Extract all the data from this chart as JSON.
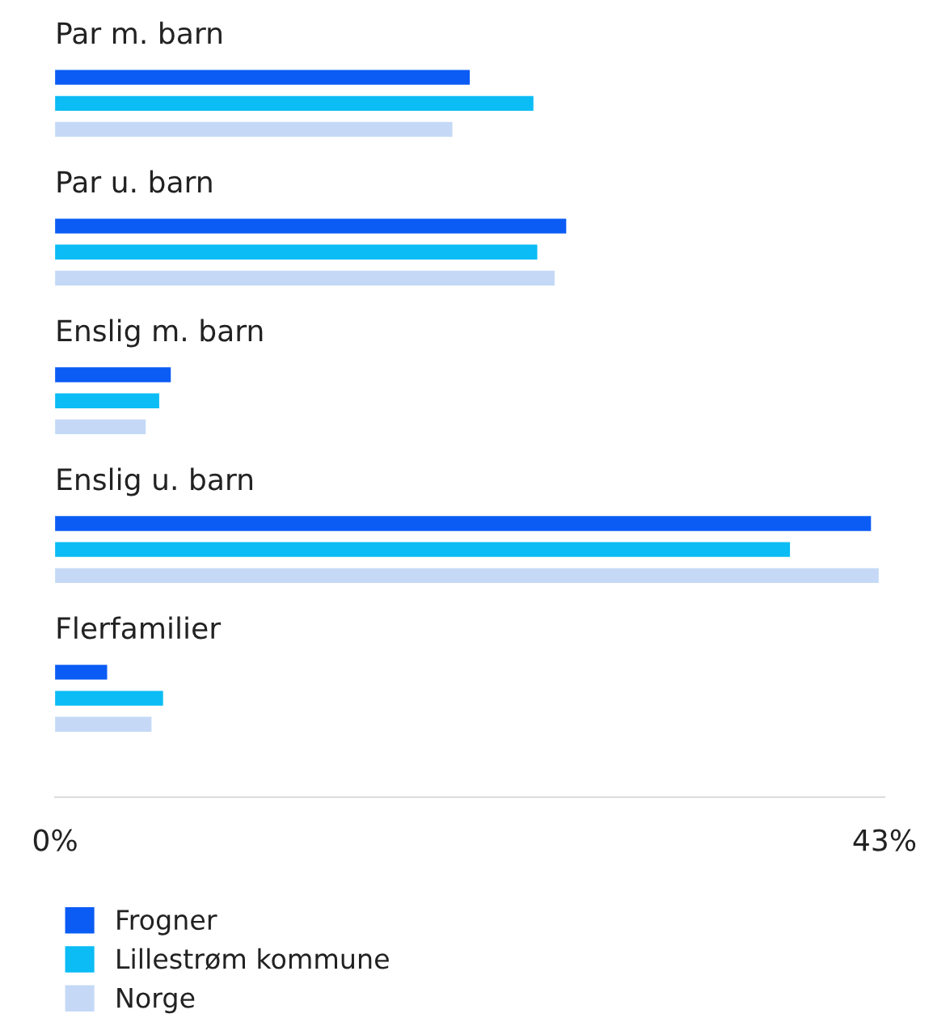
{
  "chart_data": {
    "type": "bar",
    "orientation": "horizontal",
    "categories": [
      "Par m. barn",
      "Par u. barn",
      "Enslig m. barn",
      "Enslig u. barn",
      "Flerfamilier"
    ],
    "series": [
      {
        "name": "Frogner",
        "color": "#0b5cf5",
        "values": [
          21.5,
          26.5,
          6.0,
          42.3,
          2.7
        ]
      },
      {
        "name": "Lillestrøm kommune",
        "color": "#0bbcf5",
        "values": [
          24.8,
          25.0,
          5.4,
          38.1,
          5.6
        ]
      },
      {
        "name": "Norge",
        "color": "#c5d9f7",
        "values": [
          20.6,
          25.9,
          4.7,
          42.7,
          5.0
        ]
      }
    ],
    "xlim": [
      0,
      43
    ],
    "xticks": [
      {
        "value": 0,
        "label": "0%"
      },
      {
        "value": 43,
        "label": "43%"
      }
    ],
    "grid": false,
    "legend": "bottom"
  }
}
